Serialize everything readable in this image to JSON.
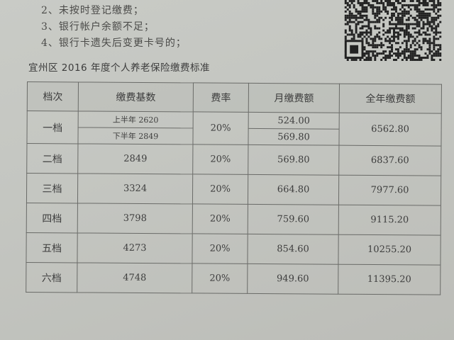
{
  "notes": [
    "2、未按时登记缴费；",
    "3、银行帐户余额不足；",
    "4、银行卡遗失后变更卡号的；"
  ],
  "title": "宜州区 2016 年度个人养老保险缴费标准",
  "table": {
    "headers": [
      "档次",
      "缴费基数",
      "费率",
      "月缴费额",
      "全年缴费额"
    ],
    "first_row": {
      "level": "一档",
      "base_h1": "上半年 2620",
      "base_h2": "下半年 2849",
      "rate": "20%",
      "monthly_h1": "524.00",
      "monthly_h2": "569.80",
      "annual": "6562.80"
    },
    "rows": [
      {
        "level": "二档",
        "base": "2849",
        "rate": "20%",
        "monthly": "569.80",
        "annual": "6837.60"
      },
      {
        "level": "三档",
        "base": "3324",
        "rate": "20%",
        "monthly": "664.80",
        "annual": "7977.60"
      },
      {
        "level": "四档",
        "base": "3798",
        "rate": "20%",
        "monthly": "759.60",
        "annual": "9115.20"
      },
      {
        "level": "五档",
        "base": "4273",
        "rate": "20%",
        "monthly": "854.60",
        "annual": "10255.20"
      },
      {
        "level": "六档",
        "base": "4748",
        "rate": "20%",
        "monthly": "949.60",
        "annual": "11395.20"
      }
    ]
  }
}
